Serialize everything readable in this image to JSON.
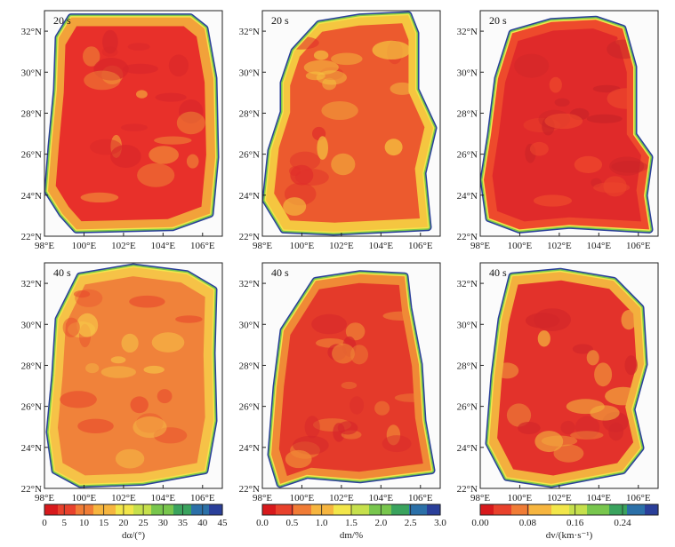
{
  "panels": [
    {
      "id": "a20",
      "label": "20 s",
      "row": 0,
      "col": 0,
      "base_color": "#e8302a",
      "dark_color": "#d8262a",
      "light_color": "#f2a23a"
    },
    {
      "id": "m20",
      "label": "20 s",
      "row": 0,
      "col": 1,
      "base_color": "#ec5a2e",
      "dark_color": "#e02f2a",
      "light_color": "#f5c640"
    },
    {
      "id": "v20",
      "label": "20 s",
      "row": 0,
      "col": 2,
      "base_color": "#e02a2a",
      "dark_color": "#c92428",
      "light_color": "#ee4a2c"
    },
    {
      "id": "a40",
      "label": "40 s",
      "row": 1,
      "col": 0,
      "base_color": "#f0823a",
      "dark_color": "#e8482c",
      "light_color": "#f6c247"
    },
    {
      "id": "m40",
      "label": "40 s",
      "row": 1,
      "col": 1,
      "base_color": "#e43a2a",
      "dark_color": "#d5262b",
      "light_color": "#f08a36"
    },
    {
      "id": "v40",
      "label": "40 s",
      "row": 1,
      "col": 2,
      "base_color": "#e3322b",
      "dark_color": "#d3272a",
      "light_color": "#f3b03e"
    }
  ],
  "axes": {
    "x_ticks": [
      "98°E",
      "100°E",
      "102°E",
      "104°E",
      "106°E"
    ],
    "y_ticks": [
      "32°N",
      "30°N",
      "28°N",
      "26°N",
      "24°N",
      "22°N"
    ],
    "xlim": [
      98,
      107
    ],
    "ylim": [
      22,
      33
    ]
  },
  "colorbars": [
    {
      "id": "cb-a",
      "ticks": [
        "0",
        "5",
        "10",
        "15",
        "20",
        "25",
        "30",
        "35",
        "40",
        "45"
      ],
      "label_main": "dα/(°)"
    },
    {
      "id": "cb-m",
      "ticks": [
        "0.0",
        "0.5",
        "1.0",
        "1.5",
        "2.0",
        "2.5",
        "3.0"
      ],
      "label_main": "dm/%"
    },
    {
      "id": "cb-v",
      "ticks": [
        "0.00",
        "0.08",
        "0.16",
        "0.24"
      ],
      "label_main": "dv/(km·s⁻¹)"
    }
  ],
  "colors": {
    "palette": [
      "#d7191c",
      "#e8412c",
      "#f07c36",
      "#f6b53f",
      "#f2e64a",
      "#c6e04c",
      "#78c64d",
      "#3aa35e",
      "#2b70a8",
      "#2a3f9a"
    ],
    "frame": "#222222"
  }
}
